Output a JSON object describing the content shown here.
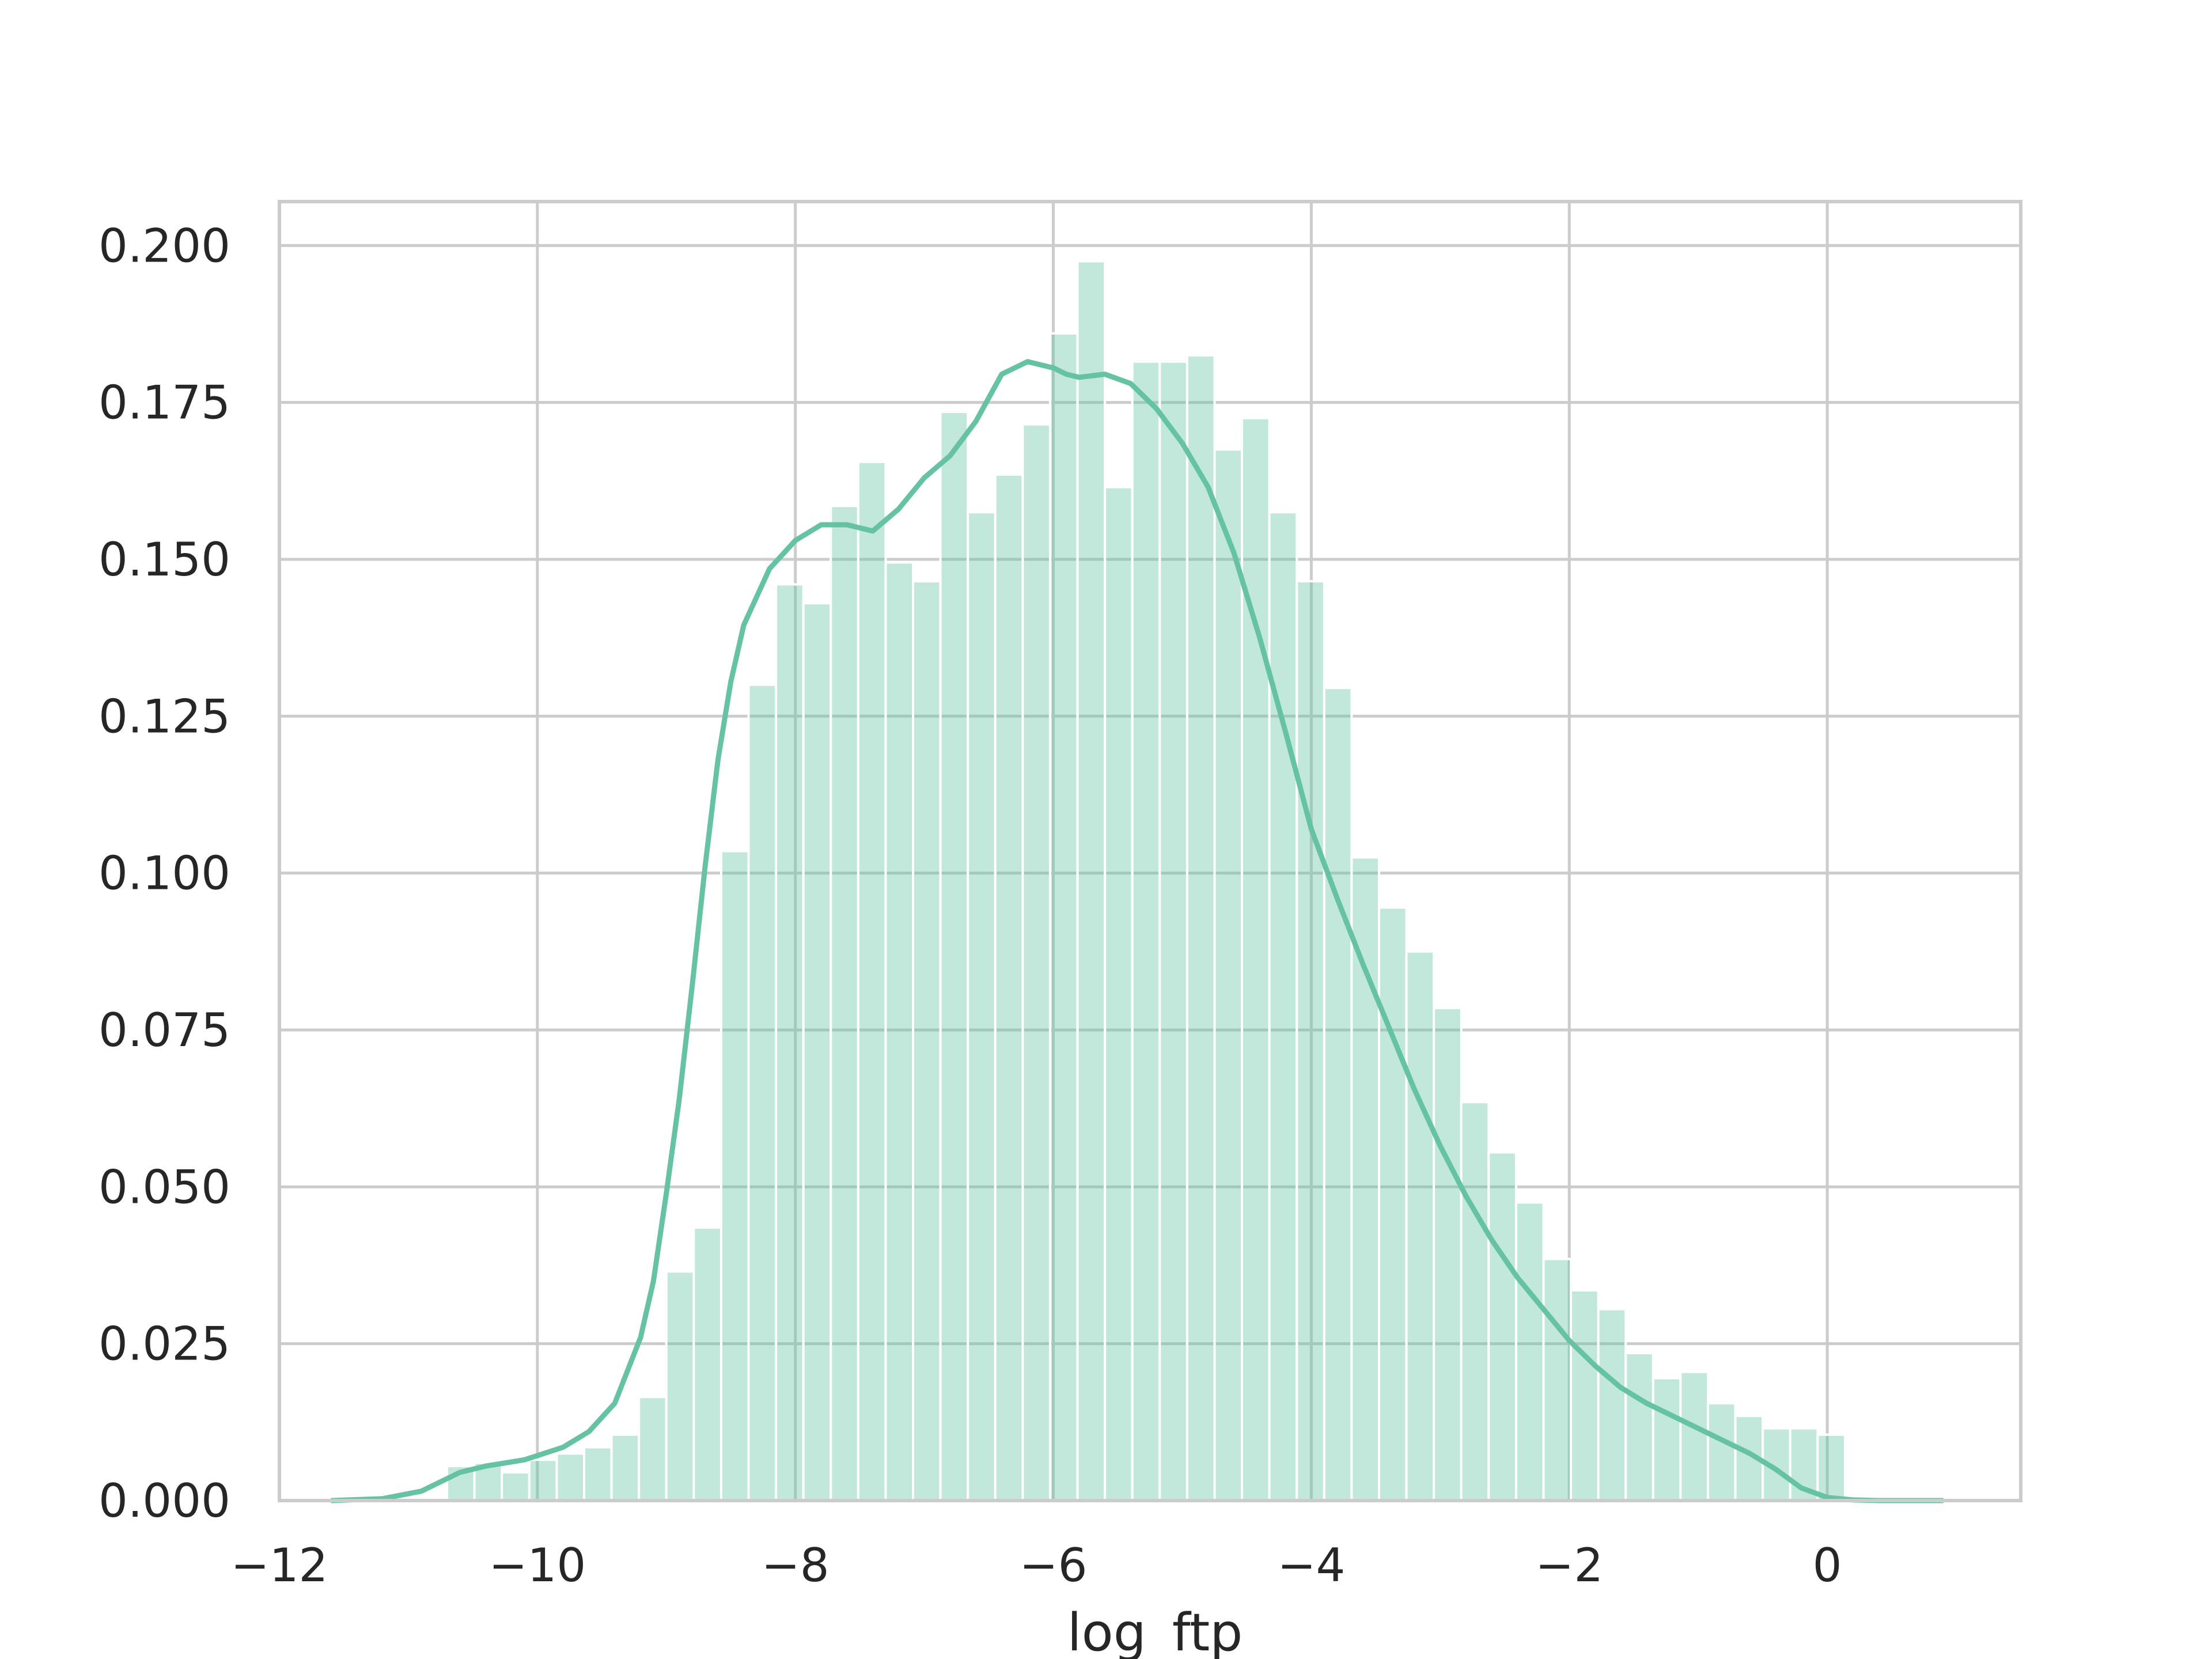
{
  "chart_data": {
    "type": "bar",
    "title": "",
    "xlabel": "log_ftp",
    "ylabel": "",
    "xlim": [
      -12.0,
      1.5
    ],
    "ylim": [
      0.0,
      0.207
    ],
    "xticks": [
      -12,
      -10,
      -8,
      -6,
      -4,
      -2,
      0
    ],
    "xtick_labels": [
      "−12",
      "−10",
      "−8",
      "−6",
      "−4",
      "−2",
      "0"
    ],
    "yticks": [
      0.0,
      0.025,
      0.05,
      0.075,
      0.1,
      0.125,
      0.15,
      0.175,
      0.2
    ],
    "ytick_labels": [
      "0.000",
      "0.025",
      "0.050",
      "0.075",
      "0.100",
      "0.125",
      "0.150",
      "0.175",
      "0.200"
    ],
    "grid": true,
    "colors": {
      "bar_fill": "#66c2a5",
      "bar_opacity": 0.4,
      "kde_line": "#66c2a5",
      "grid": "#cccccc",
      "spine": "#cccccc",
      "text": "#262626"
    },
    "histogram": {
      "bin_start": -10.7,
      "bin_width": 0.2125,
      "values": [
        0.0055,
        0.006,
        0.0045,
        0.0065,
        0.0075,
        0.0085,
        0.0105,
        0.0165,
        0.0365,
        0.0435,
        0.1035,
        0.13,
        0.146,
        0.143,
        0.1585,
        0.1655,
        0.1495,
        0.1465,
        0.1735,
        0.1575,
        0.1635,
        0.1715,
        0.186,
        0.1975,
        0.1615,
        0.1815,
        0.1815,
        0.1825,
        0.1675,
        0.1725,
        0.1575,
        0.1465,
        0.1295,
        0.1025,
        0.0945,
        0.0875,
        0.0785,
        0.0635,
        0.0555,
        0.0475,
        0.0385,
        0.0335,
        0.0305,
        0.0235,
        0.0195,
        0.0205,
        0.0155,
        0.0135,
        0.0115,
        0.0115,
        0.0105
      ]
    },
    "kde": {
      "x": [
        -11.6,
        -11.2,
        -10.9,
        -10.6,
        -10.4,
        -10.1,
        -9.8,
        -9.6,
        -9.4,
        -9.2,
        -9.1,
        -9.0,
        -8.9,
        -8.8,
        -8.7,
        -8.6,
        -8.5,
        -8.4,
        -8.2,
        -8.0,
        -7.8,
        -7.6,
        -7.4,
        -7.2,
        -7.0,
        -6.8,
        -6.6,
        -6.4,
        -6.2,
        -6.0,
        -5.9,
        -5.8,
        -5.6,
        -5.4,
        -5.2,
        -5.0,
        -4.8,
        -4.6,
        -4.4,
        -4.2,
        -4.0,
        -3.8,
        -3.6,
        -3.4,
        -3.2,
        -3.0,
        -2.8,
        -2.6,
        -2.4,
        -2.2,
        -2.0,
        -1.8,
        -1.6,
        -1.4,
        -1.2,
        -1.0,
        -0.8,
        -0.6,
        -0.4,
        -0.2,
        0.0,
        0.2,
        0.4,
        0.6,
        0.9
      ],
      "y": [
        0.0,
        0.0003,
        0.0015,
        0.0045,
        0.0055,
        0.0065,
        0.0085,
        0.011,
        0.0155,
        0.026,
        0.035,
        0.049,
        0.064,
        0.082,
        0.101,
        0.118,
        0.1305,
        0.1395,
        0.1485,
        0.153,
        0.1555,
        0.1555,
        0.1545,
        0.158,
        0.163,
        0.1665,
        0.172,
        0.1795,
        0.1815,
        0.1805,
        0.1795,
        0.179,
        0.1795,
        0.178,
        0.174,
        0.1685,
        0.1615,
        0.151,
        0.1375,
        0.1225,
        0.107,
        0.096,
        0.0855,
        0.0755,
        0.0655,
        0.0565,
        0.0485,
        0.0415,
        0.0355,
        0.0305,
        0.0255,
        0.0215,
        0.018,
        0.0155,
        0.0135,
        0.0115,
        0.0095,
        0.0075,
        0.005,
        0.002,
        0.0005,
        0.0001,
        0.0,
        0.0,
        0.0
      ]
    }
  }
}
